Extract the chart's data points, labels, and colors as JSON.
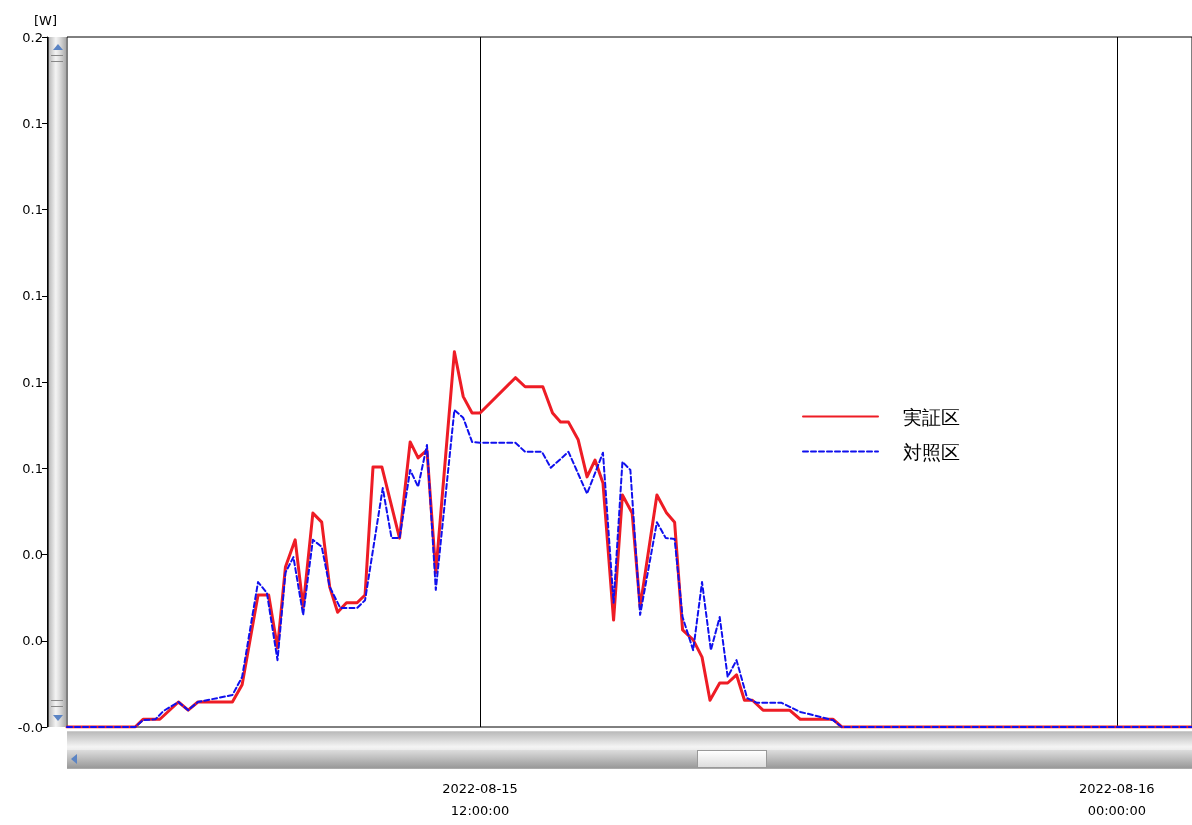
{
  "chart_data": {
    "type": "line",
    "ylabel": "[W]",
    "xlim": [
      "2022-08-15T04:13",
      "2022-08-16T01:25"
    ],
    "xticks": [
      {
        "value": "2022-08-15T12:00",
        "label": "2022-08-15\n12:00:00"
      },
      {
        "value": "2022-08-16T00:00",
        "label": "2022-08-16\n00:00:00"
      }
    ],
    "ylim": [
      0,
      0.16
    ],
    "yticks": [
      {
        "value": 0,
        "label": "-0.0"
      },
      {
        "value": 0.02,
        "label": "0.0"
      },
      {
        "value": 0.04,
        "label": "0.0"
      },
      {
        "value": 0.06,
        "label": "0.1"
      },
      {
        "value": 0.08,
        "label": "0.1"
      },
      {
        "value": 0.1,
        "label": "0.1"
      },
      {
        "value": 0.12,
        "label": "0.1"
      },
      {
        "value": 0.14,
        "label": "0.1"
      },
      {
        "value": 0.16,
        "label": "0.2"
      }
    ],
    "grid": "x",
    "legend": "right",
    "marker": "none",
    "series": [
      {
        "name": "実証区",
        "color": "#ee1c25",
        "line_style": "solid",
        "x": [
          "2022-08-15T04:13",
          "2022-08-15T05:30",
          "2022-08-15T05:39",
          "2022-08-15T05:58",
          "2022-08-15T06:19",
          "2022-08-15T06:30",
          "2022-08-15T06:41",
          "2022-08-15T07:20",
          "2022-08-15T07:31",
          "2022-08-15T07:49",
          "2022-08-15T08:01",
          "2022-08-15T08:11",
          "2022-08-15T08:20",
          "2022-08-15T08:31",
          "2022-08-15T08:40",
          "2022-08-15T08:51",
          "2022-08-15T09:01",
          "2022-08-15T09:10",
          "2022-08-15T09:19",
          "2022-08-15T09:29",
          "2022-08-15T09:41",
          "2022-08-15T09:50",
          "2022-08-15T09:59",
          "2022-08-15T10:09",
          "2022-08-15T10:29",
          "2022-08-15T10:41",
          "2022-08-15T10:50",
          "2022-08-15T11:00",
          "2022-08-15T11:10",
          "2022-08-15T11:31",
          "2022-08-15T11:41",
          "2022-08-15T11:51",
          "2022-08-15T12:00",
          "2022-08-15T12:40",
          "2022-08-15T12:51",
          "2022-08-15T13:11",
          "2022-08-15T13:22",
          "2022-08-15T13:31",
          "2022-08-15T13:40",
          "2022-08-15T13:51",
          "2022-08-15T14:01",
          "2022-08-15T14:10",
          "2022-08-15T14:19",
          "2022-08-15T14:31",
          "2022-08-15T14:41",
          "2022-08-15T14:52",
          "2022-08-15T15:01",
          "2022-08-15T15:20",
          "2022-08-15T15:31",
          "2022-08-15T15:40",
          "2022-08-15T15:49",
          "2022-08-15T16:01",
          "2022-08-15T16:11",
          "2022-08-15T16:20",
          "2022-08-15T16:31",
          "2022-08-15T16:40",
          "2022-08-15T16:50",
          "2022-08-15T16:59",
          "2022-08-15T17:08",
          "2022-08-15T17:20",
          "2022-08-15T17:50",
          "2022-08-15T18:02",
          "2022-08-15T18:39",
          "2022-08-15T18:49",
          "2022-08-16T01:25"
        ],
        "values": [
          0,
          0,
          0.0018,
          0.0018,
          0.0058,
          0.0039,
          0.0058,
          0.0058,
          0.0098,
          0.0306,
          0.0306,
          0.0183,
          0.0371,
          0.0434,
          0.0278,
          0.0496,
          0.0475,
          0.0325,
          0.0266,
          0.0288,
          0.0288,
          0.0306,
          0.0603,
          0.0603,
          0.0438,
          0.0661,
          0.0624,
          0.0642,
          0.0358,
          0.087,
          0.0766,
          0.0728,
          0.0728,
          0.081,
          0.0789,
          0.0789,
          0.0728,
          0.0707,
          0.0707,
          0.0666,
          0.058,
          0.0619,
          0.0566,
          0.0248,
          0.0538,
          0.0496,
          0.0278,
          0.0538,
          0.0496,
          0.0475,
          0.0225,
          0.0202,
          0.0162,
          0.0062,
          0.0102,
          0.0102,
          0.0121,
          0.0062,
          0.0062,
          0.0039,
          0.0039,
          0.0018,
          0.0018,
          0,
          0
        ]
      },
      {
        "name": "対照区",
        "color": "#1010ee",
        "line_style": "dashed",
        "x": [
          "2022-08-15T04:13",
          "2022-08-15T05:30",
          "2022-08-15T05:39",
          "2022-08-15T05:53",
          "2022-08-15T06:02",
          "2022-08-15T06:19",
          "2022-08-15T06:30",
          "2022-08-15T06:41",
          "2022-08-15T07:20",
          "2022-08-15T07:31",
          "2022-08-15T07:49",
          "2022-08-15T07:59",
          "2022-08-15T08:11",
          "2022-08-15T08:20",
          "2022-08-15T08:29",
          "2022-08-15T08:40",
          "2022-08-15T08:51",
          "2022-08-15T09:01",
          "2022-08-15T09:10",
          "2022-08-15T09:22",
          "2022-08-15T09:41",
          "2022-08-15T09:50",
          "2022-08-15T10:10",
          "2022-08-15T10:20",
          "2022-08-15T10:29",
          "2022-08-15T10:41",
          "2022-08-15T10:50",
          "2022-08-15T11:00",
          "2022-08-15T11:10",
          "2022-08-15T11:31",
          "2022-08-15T11:41",
          "2022-08-15T11:51",
          "2022-08-15T12:00",
          "2022-08-15T12:40",
          "2022-08-15T12:51",
          "2022-08-15T13:10",
          "2022-08-15T13:20",
          "2022-08-15T13:40",
          "2022-08-15T14:01",
          "2022-08-15T14:19",
          "2022-08-15T14:31",
          "2022-08-15T14:41",
          "2022-08-15T14:50",
          "2022-08-15T15:01",
          "2022-08-15T15:20",
          "2022-08-15T15:30",
          "2022-08-15T15:40",
          "2022-08-15T15:49",
          "2022-08-15T16:01",
          "2022-08-15T16:11",
          "2022-08-15T16:21",
          "2022-08-15T16:31",
          "2022-08-15T16:40",
          "2022-08-15T16:50",
          "2022-08-15T17:02",
          "2022-08-15T17:13",
          "2022-08-15T17:41",
          "2022-08-15T18:02",
          "2022-08-15T18:39",
          "2022-08-15T18:49",
          "2022-08-16T01:25"
        ],
        "values": [
          0,
          0,
          0.0016,
          0.0018,
          0.0037,
          0.0058,
          0.0039,
          0.0058,
          0.0074,
          0.0116,
          0.0336,
          0.0311,
          0.0155,
          0.0358,
          0.0394,
          0.026,
          0.0434,
          0.0418,
          0.0325,
          0.0276,
          0.0276,
          0.0294,
          0.0554,
          0.0438,
          0.0438,
          0.0596,
          0.0557,
          0.0654,
          0.0318,
          0.0735,
          0.0717,
          0.0661,
          0.0659,
          0.0659,
          0.0638,
          0.0638,
          0.0601,
          0.0638,
          0.0541,
          0.0636,
          0.0288,
          0.0615,
          0.0596,
          0.026,
          0.0475,
          0.0438,
          0.0436,
          0.0255,
          0.0178,
          0.0336,
          0.0178,
          0.0255,
          0.0116,
          0.0155,
          0.0067,
          0.0056,
          0.0056,
          0.0035,
          0.0016,
          0,
          0
        ]
      }
    ]
  }
}
